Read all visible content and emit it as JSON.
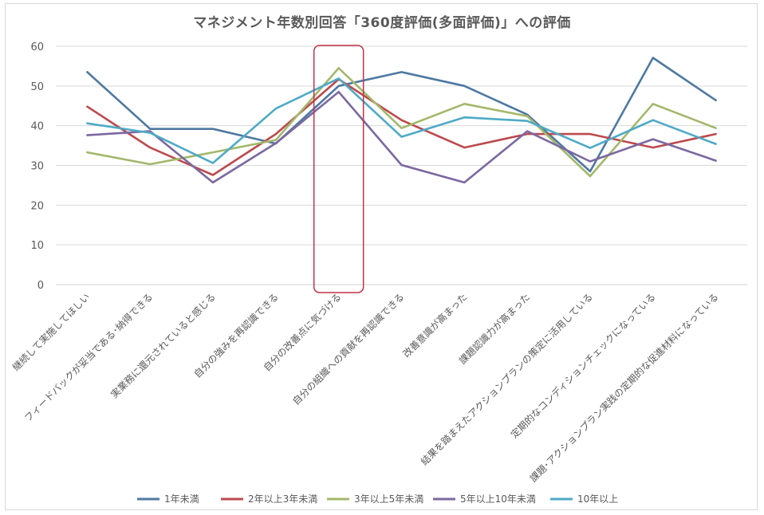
{
  "chart_data": {
    "type": "line",
    "title": "マネジメント年数別回答「360度評価(多面評価)」への評価",
    "ylim": [
      0,
      60
    ],
    "yticks": [
      0,
      10,
      20,
      30,
      40,
      50,
      60
    ],
    "grid": true,
    "legend_position": "bottom",
    "categories": [
      "継続して実施してほしい",
      "フィードバックが妥当である･納得できる",
      "実業務に還元されていると感じる",
      "自分の強みを再認識できる",
      "自分の改善点に気づける",
      "自分の組織への貢献を再認識できる",
      "改善意識が高まった",
      "課題認識力が高まった",
      "結果を踏まえたアクションプランの策定に活用している",
      "定期的なコンディションチェックになっている",
      "課題･アクションプラン実践の定期的な促進材料になっている"
    ],
    "series": [
      {
        "name": "1年未満",
        "color": "#4e79a1",
        "values": [
          53.5,
          39.2,
          39.2,
          35.5,
          50,
          53.5,
          50,
          42.8,
          28.5,
          57.1,
          46.4
        ]
      },
      {
        "name": "2年以上3年未満",
        "color": "#bc4a4e",
        "values": [
          44.8,
          34.5,
          27.6,
          37.9,
          51.7,
          41.4,
          34.5,
          37.9,
          37.9,
          34.5,
          37.9
        ]
      },
      {
        "name": "3年以上5年未満",
        "color": "#a3b86b",
        "values": [
          33.3,
          30.3,
          33.3,
          36.4,
          54.5,
          39.4,
          45.5,
          42.4,
          27.3,
          45.5,
          39.4
        ]
      },
      {
        "name": "5年以上10年未満",
        "color": "#7b68a0",
        "values": [
          37.6,
          38.6,
          25.7,
          35.6,
          48.5,
          30.1,
          25.7,
          38.6,
          31.0,
          36.6,
          31.2
        ]
      },
      {
        "name": "10年以上",
        "color": "#4eaac6",
        "values": [
          40.6,
          38.2,
          30.6,
          44.3,
          51.9,
          37.2,
          42.1,
          41.2,
          34.4,
          41.4,
          35.4
        ]
      }
    ],
    "highlight_category_index": 4,
    "highlight_color": "#c0324a"
  }
}
